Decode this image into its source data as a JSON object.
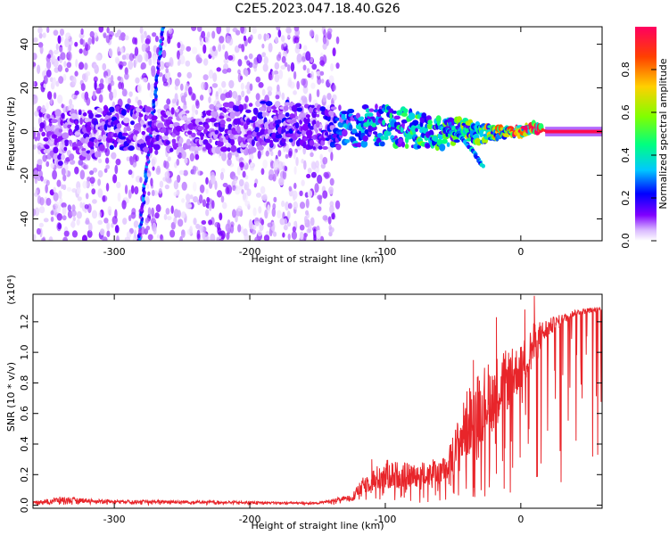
{
  "chart_data": [
    {
      "type": "heatmap",
      "title": "C2E5.2023.047.18.40.G26",
      "xlabel": "Height of straight line (km)",
      "ylabel": "Frequency (Hz)",
      "xlim": [
        -360,
        60
      ],
      "ylim": [
        -50,
        48
      ],
      "xticks": [
        -300,
        -200,
        -100,
        0
      ],
      "yticks": [
        -40,
        -20,
        0,
        20,
        40
      ],
      "colorbar": {
        "label": "Normalized spectral amplitude",
        "range": [
          0,
          1
        ],
        "ticks": [
          0.0,
          0.2,
          0.4,
          0.6,
          0.8
        ],
        "colormap": [
          "#ffffff",
          "#d9b8ff",
          "#8000ff",
          "#0000ff",
          "#00c8ff",
          "#00ff80",
          "#80ff00",
          "#ffd000",
          "#ff4000",
          "#ff0060"
        ]
      },
      "noise_band": {
        "x_start": -360,
        "x_end": -135,
        "freq_min": -50,
        "freq_max": 48,
        "amplitude": 0.15
      },
      "streak": {
        "x_start": -282,
        "x_end": -264,
        "freq_start": -50,
        "freq_end": 48,
        "amplitude": 0.22
      },
      "signal_trace": [
        {
          "x": -355,
          "f": -2,
          "amp": 0.18,
          "spread": 12
        },
        {
          "x": -330,
          "f": -3,
          "amp": 0.2,
          "spread": 12
        },
        {
          "x": -300,
          "f": 2,
          "amp": 0.25,
          "spread": 10
        },
        {
          "x": -250,
          "f": 1,
          "amp": 0.18,
          "spread": 10
        },
        {
          "x": -200,
          "f": 2,
          "amp": 0.22,
          "spread": 11
        },
        {
          "x": -175,
          "f": 4,
          "amp": 0.25,
          "spread": 10
        },
        {
          "x": -150,
          "f": 2,
          "amp": 0.22,
          "spread": 10
        },
        {
          "x": -130,
          "f": 2,
          "amp": 0.35,
          "spread": 9
        },
        {
          "x": -100,
          "f": 3,
          "amp": 0.42,
          "spread": 9
        },
        {
          "x": -80,
          "f": 1,
          "amp": 0.48,
          "spread": 8
        },
        {
          "x": -60,
          "f": -1,
          "amp": 0.5,
          "spread": 7
        },
        {
          "x": -45,
          "f": 1,
          "amp": 0.55,
          "spread": 5
        },
        {
          "x": -30,
          "f": -1,
          "amp": 0.6,
          "spread": 4
        },
        {
          "x": -20,
          "f": -1,
          "amp": 0.62,
          "spread": 3
        },
        {
          "x": -10,
          "f": 0,
          "amp": 0.75,
          "spread": 2
        },
        {
          "x": 0,
          "f": 0,
          "amp": 0.85,
          "spread": 2
        },
        {
          "x": 10,
          "f": 2,
          "amp": 0.8,
          "spread": 2
        },
        {
          "x": 20,
          "f": 0,
          "amp": 0.98,
          "spread": 1
        },
        {
          "x": 60,
          "f": 0,
          "amp": 1.0,
          "spread": 1
        }
      ],
      "side_branch": [
        {
          "x": -60,
          "f": 2
        },
        {
          "x": -45,
          "f": -2
        },
        {
          "x": -35,
          "f": -9
        },
        {
          "x": -28,
          "f": -16
        }
      ]
    },
    {
      "type": "line",
      "xlabel": "Height of straight line (km)",
      "ylabel": "SNR (10 * v/v)",
      "ylabel_exponent": "(x10⁴)",
      "xlim": [
        -360,
        60
      ],
      "ylim": [
        -0.02,
        1.38
      ],
      "xticks": [
        -300,
        -200,
        -100,
        0
      ],
      "yticks": [
        0.0,
        0.2,
        0.4,
        0.6,
        0.8,
        1.0,
        1.2
      ],
      "ytick_labels": [
        "0.0",
        "0.2",
        "0.4",
        "0.6",
        "0.8",
        "1.0",
        "1.2"
      ],
      "series": [
        {
          "color": "#e8252a",
          "envelope": [
            {
              "x": -360,
              "base": 0.01,
              "amp": 0.015
            },
            {
              "x": -340,
              "base": 0.015,
              "amp": 0.04
            },
            {
              "x": -300,
              "base": 0.015,
              "amp": 0.02
            },
            {
              "x": -250,
              "base": 0.012,
              "amp": 0.02
            },
            {
              "x": -200,
              "base": 0.01,
              "amp": 0.015
            },
            {
              "x": -150,
              "base": 0.008,
              "amp": 0.01
            },
            {
              "x": -125,
              "base": 0.03,
              "amp": 0.04
            },
            {
              "x": -115,
              "base": 0.08,
              "amp": 0.12
            },
            {
              "x": -100,
              "base": 0.1,
              "amp": 0.2
            },
            {
              "x": -80,
              "base": 0.12,
              "amp": 0.15
            },
            {
              "x": -55,
              "base": 0.14,
              "amp": 0.18
            },
            {
              "x": -40,
              "base": 0.3,
              "amp": 0.45
            },
            {
              "x": -30,
              "base": 0.4,
              "amp": 0.5
            },
            {
              "x": -15,
              "base": 0.55,
              "amp": 0.45
            },
            {
              "x": 0,
              "base": 0.75,
              "amp": 0.3
            },
            {
              "x": 10,
              "base": 0.9,
              "amp": 0.3
            },
            {
              "x": 20,
              "base": 1.1,
              "amp": 0.12
            },
            {
              "x": 40,
              "base": 1.24,
              "amp": 0.04
            },
            {
              "x": 60,
              "base": 1.27,
              "amp": 0.03
            }
          ],
          "spikes": [
            {
              "x": -18,
              "y": 1.23
            },
            {
              "x": -35,
              "y": 0.95
            },
            {
              "x": 10,
              "y": 1.37
            },
            {
              "x": -24,
              "y": 0.92
            },
            {
              "x": 12,
              "y": 0.3
            },
            {
              "x": 3,
              "y": 1.28
            },
            {
              "x": -110,
              "y": 0.3
            }
          ]
        }
      ]
    }
  ]
}
